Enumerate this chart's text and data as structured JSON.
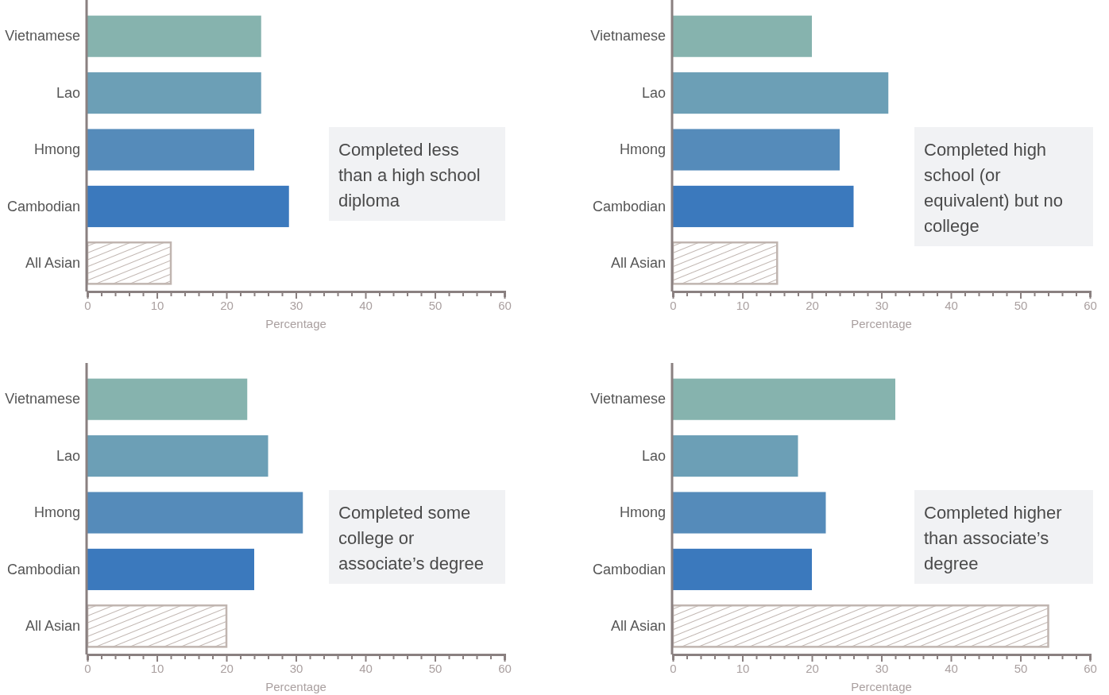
{
  "chart_data": [
    {
      "type": "bar",
      "orientation": "horizontal",
      "title": "Completed less than a high school diploma",
      "xlabel": "Percentage",
      "categories": [
        "Vietnamese",
        "Lao",
        "Hmong",
        "Cambodian",
        "All Asian"
      ],
      "values": [
        25,
        25,
        24,
        29,
        12
      ],
      "colors": [
        "#86b3ae",
        "#6c9fb6",
        "#558bba",
        "#3b79bd",
        "#c0b5b0"
      ],
      "xlim": [
        0,
        60
      ],
      "xticks": [
        0,
        {
          "value": 2,
          "label": null
        },
        {
          "value": 4,
          "label": null
        },
        {
          "value": 6,
          "label": null
        },
        {
          "value": 8,
          "label": null
        },
        10,
        {
          "value": 12,
          "label": null
        },
        {
          "value": 14,
          "label": null
        },
        {
          "value": 16,
          "label": null
        },
        {
          "value": 18,
          "label": null
        },
        20,
        {
          "value": 22,
          "label": null
        },
        {
          "value": 24,
          "label": null
        },
        {
          "value": 26,
          "label": null
        },
        {
          "value": 28,
          "label": null
        },
        30,
        {
          "value": 32,
          "label": null
        },
        {
          "value": 34,
          "label": null
        },
        {
          "value": 36,
          "label": null
        },
        {
          "value": 38,
          "label": null
        },
        40,
        {
          "value": 42,
          "label": null
        },
        {
          "value": 44,
          "label": null
        },
        {
          "value": 46,
          "label": null
        },
        {
          "value": 48,
          "label": null
        },
        50,
        {
          "value": 52,
          "label": null
        },
        {
          "value": 54,
          "label": null
        },
        {
          "value": 56,
          "label": null
        },
        {
          "value": 58,
          "label": null
        },
        60
      ]
    },
    {
      "type": "bar",
      "orientation": "horizontal",
      "title": "Completed high school (or equivalent) but no college",
      "xlabel": "Percentage",
      "categories": [
        "Vietnamese",
        "Lao",
        "Hmong",
        "Cambodian",
        "All Asian"
      ],
      "values": [
        20,
        31,
        24,
        26,
        15
      ],
      "colors": [
        "#86b3ae",
        "#6c9fb6",
        "#558bba",
        "#3b79bd",
        "#c0b5b0"
      ],
      "xlim": [
        0,
        60
      ],
      "xticks": [
        0,
        {
          "value": 2,
          "label": null
        },
        {
          "value": 4,
          "label": null
        },
        {
          "value": 6,
          "label": null
        },
        {
          "value": 8,
          "label": null
        },
        10,
        {
          "value": 12,
          "label": null
        },
        {
          "value": 14,
          "label": null
        },
        {
          "value": 16,
          "label": null
        },
        {
          "value": 18,
          "label": null
        },
        20,
        {
          "value": 22,
          "label": null
        },
        {
          "value": 24,
          "label": null
        },
        {
          "value": 26,
          "label": null
        },
        {
          "value": 28,
          "label": null
        },
        30,
        {
          "value": 32,
          "label": null
        },
        {
          "value": 34,
          "label": null
        },
        {
          "value": 36,
          "label": null
        },
        {
          "value": 38,
          "label": null
        },
        40,
        {
          "value": 42,
          "label": null
        },
        {
          "value": 44,
          "label": null
        },
        {
          "value": 46,
          "label": null
        },
        {
          "value": 48,
          "label": null
        },
        50,
        {
          "value": 52,
          "label": null
        },
        {
          "value": 54,
          "label": null
        },
        {
          "value": 56,
          "label": null
        },
        {
          "value": 58,
          "label": null
        },
        60
      ]
    },
    {
      "type": "bar",
      "orientation": "horizontal",
      "title": "Completed some college or associate’s degree",
      "xlabel": "Percentage",
      "categories": [
        "Vietnamese",
        "Lao",
        "Hmong",
        "Cambodian",
        "All Asian"
      ],
      "values": [
        23,
        26,
        31,
        24,
        20
      ],
      "colors": [
        "#86b3ae",
        "#6c9fb6",
        "#558bba",
        "#3b79bd",
        "#c0b5b0"
      ],
      "xlim": [
        0,
        60
      ],
      "xticks": [
        0,
        {
          "value": 2,
          "label": null
        },
        {
          "value": 4,
          "label": null
        },
        {
          "value": 6,
          "label": null
        },
        {
          "value": 8,
          "label": null
        },
        10,
        {
          "value": 12,
          "label": null
        },
        {
          "value": 14,
          "label": null
        },
        {
          "value": 16,
          "label": null
        },
        {
          "value": 18,
          "label": null
        },
        20,
        {
          "value": 22,
          "label": null
        },
        {
          "value": 24,
          "label": null
        },
        {
          "value": 26,
          "label": null
        },
        {
          "value": 28,
          "label": null
        },
        30,
        {
          "value": 32,
          "label": null
        },
        {
          "value": 34,
          "label": null
        },
        {
          "value": 36,
          "label": null
        },
        {
          "value": 38,
          "label": null
        },
        40,
        {
          "value": 42,
          "label": null
        },
        {
          "value": 44,
          "label": null
        },
        {
          "value": 46,
          "label": null
        },
        {
          "value": 48,
          "label": null
        },
        50,
        {
          "value": 52,
          "label": null
        },
        {
          "value": 54,
          "label": null
        },
        {
          "value": 56,
          "label": null
        },
        {
          "value": 58,
          "label": null
        },
        60
      ]
    },
    {
      "type": "bar",
      "orientation": "horizontal",
      "title": "Completed higher than associate’s degree",
      "xlabel": "Percentage",
      "categories": [
        "Vietnamese",
        "Lao",
        "Hmong",
        "Cambodian",
        "All Asian"
      ],
      "values": [
        32,
        18,
        22,
        20,
        54
      ],
      "colors": [
        "#86b3ae",
        "#6c9fb6",
        "#558bba",
        "#3b79bd",
        "#c0b5b0"
      ],
      "xlim": [
        0,
        60
      ],
      "xticks": [
        0,
        {
          "value": 2,
          "label": null
        },
        {
          "value": 4,
          "label": null
        },
        {
          "value": 6,
          "label": null
        },
        {
          "value": 8,
          "label": null
        },
        10,
        {
          "value": 12,
          "label": null
        },
        {
          "value": 14,
          "label": null
        },
        {
          "value": 16,
          "label": null
        },
        {
          "value": 18,
          "label": null
        },
        20,
        {
          "value": 22,
          "label": null
        },
        {
          "value": 24,
          "label": null
        },
        {
          "value": 26,
          "label": null
        },
        {
          "value": 28,
          "label": null
        },
        30,
        {
          "value": 32,
          "label": null
        },
        {
          "value": 34,
          "label": null
        },
        {
          "value": 36,
          "label": null
        },
        {
          "value": 38,
          "label": null
        },
        40,
        {
          "value": 42,
          "label": null
        },
        {
          "value": 44,
          "label": null
        },
        {
          "value": 46,
          "label": null
        },
        {
          "value": 48,
          "label": null
        },
        50,
        {
          "value": 52,
          "label": null
        },
        {
          "value": 54,
          "label": null
        },
        {
          "value": 56,
          "label": null
        },
        {
          "value": 58,
          "label": null
        },
        60
      ]
    }
  ]
}
